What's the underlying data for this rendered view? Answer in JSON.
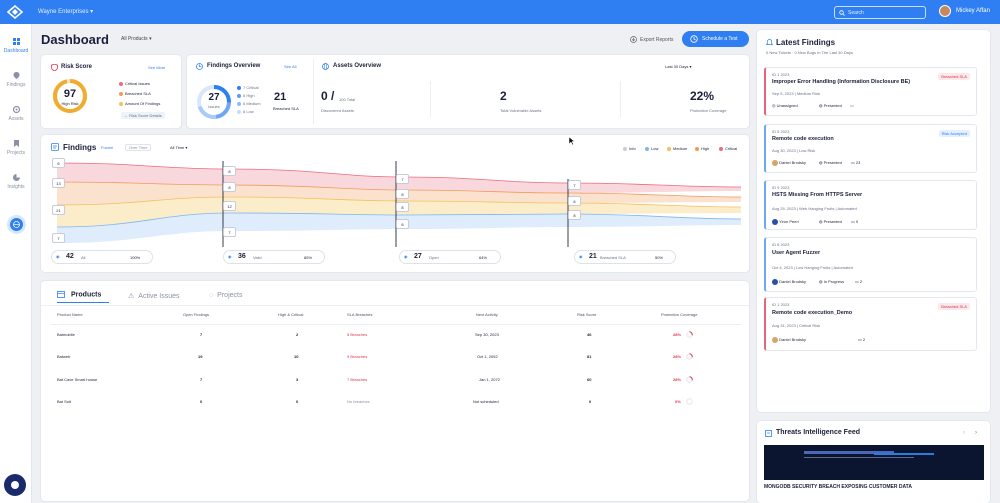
{
  "topbar": {
    "org": "Wayne Enterprises",
    "search_placeholder": "Search",
    "user": "Mickey Affan"
  },
  "nav": [
    {
      "label": "Dashboard"
    },
    {
      "label": "Findings"
    },
    {
      "label": "Assets"
    },
    {
      "label": "Projects"
    },
    {
      "label": "Insights"
    }
  ],
  "header": {
    "title": "Dashboard",
    "product_filter": "All Products",
    "export": "Export Reports",
    "schedule": "Schedule a Test"
  },
  "risk": {
    "title": "Risk Score",
    "see_more": "See More",
    "score": "97",
    "level": "High Risk",
    "legend": [
      "Critical Issues",
      "Breached SLA",
      "Amount Of Findings"
    ],
    "note": "← Risk Score Details"
  },
  "overview": {
    "title": "Findings Overview",
    "see_all": "See All",
    "total": "27",
    "total_label": "Issues",
    "breakdown": [
      "7 Critical",
      "6 High",
      "6 Medium",
      "6 Low"
    ],
    "breached": "21",
    "breached_label": "Breached SLA"
  },
  "assets": {
    "title": "Assets Overview",
    "period": "Last 30 Days",
    "s1_value": "0 /",
    "s1_sub": "100 Total",
    "s1_label": "Discovered Assets",
    "s2_value": "2",
    "s2_label": "Total Vulnerable Assets",
    "s3_value": "22%",
    "s3_label": "Protection Coverage"
  },
  "funnel": {
    "title": "Findings",
    "tabs": [
      "Funnel",
      "Over Time"
    ],
    "filter": "All Time",
    "legend": [
      {
        "label": "Info",
        "color": "#c9ccd6"
      },
      {
        "label": "Low",
        "color": "#7fb6ee"
      },
      {
        "label": "Medium",
        "color": "#f1c15e"
      },
      {
        "label": "High",
        "color": "#f29a5a"
      },
      {
        "label": "Critical",
        "color": "#ec6a7e"
      }
    ],
    "chips": [
      [
        "6",
        "13",
        "21",
        "7"
      ],
      [
        "8",
        "8",
        "12",
        "7"
      ],
      [
        "7",
        "8",
        "8",
        "6"
      ],
      [
        "7",
        "6",
        "8"
      ]
    ],
    "stages": [
      {
        "value": "42",
        "label": "All",
        "pct": "100%"
      },
      {
        "value": "36",
        "label": "Valid",
        "pct": "85%"
      },
      {
        "value": "27",
        "label": "Open",
        "pct": "64%"
      },
      {
        "value": "21",
        "label": "Breached SLA",
        "pct": "50%"
      }
    ]
  },
  "products": {
    "tabs": [
      "Products",
      "Active Issues",
      "Projects"
    ],
    "headers": [
      "Product Name",
      "Open Findings",
      "High & Critical",
      "SLA Breaches",
      "Next Activity",
      "Risk Score",
      "Protection Coverage"
    ],
    "rows": [
      [
        "Batmobile",
        "7",
        "2",
        "5 Breaches",
        "Sep 30, 2023",
        "46",
        "28%"
      ],
      [
        "Batweb",
        "19",
        "10",
        "9 Breaches",
        "Oct 1, 2052",
        "81",
        "28%"
      ],
      [
        "Bat Cave Smart house",
        "7",
        "3",
        "7 Breaches",
        "Jan 1, 2072",
        "60",
        "28%"
      ],
      [
        "Bat Suit",
        "0",
        "0",
        "No breaches",
        "Not scheduled",
        "0",
        "0%"
      ]
    ]
  },
  "latest": {
    "title": "Latest Findings",
    "sub": "0 New Tickets · 0 New Bugs In The Last 30 Days",
    "cards": [
      {
        "id": "ID 1 2023",
        "badge": "Breached SLA",
        "title": "Improper Error Handling (Information Disclosure BE)",
        "meta": "Sep 5, 2023 | Medium Risk",
        "user": "Unassigned",
        "status": "Presented",
        "comments": ""
      },
      {
        "id": "ID 5 2023",
        "badge": "Risk Accepted",
        "title": "Remote code execution",
        "meta": "Aug 30, 2023 | Low Risk",
        "user": "Daniel Brodsky",
        "status": "Presented",
        "comments": "23"
      },
      {
        "id": "ID 9 2023",
        "badge": "",
        "title": "HSTS Missing From HTTPS Server",
        "meta": "Aug 25, 2023 | Web Hanging Fruits | Automated",
        "user": "Yiron Peeri",
        "status": "Presented",
        "comments": "0"
      },
      {
        "id": "ID 8 2023",
        "badge": "",
        "title": "User Agent Fuzzer",
        "meta": "Oct 4, 2023 | Low Hanging Fruits | Automated",
        "user": "Daniel Brodsky",
        "status": "In Progress",
        "comments": "2"
      },
      {
        "id": "ID 1 2023",
        "badge": "Breached SLA",
        "title": "Remote code execution_Demo",
        "meta": "Aug 31, 2023 | Critical Risk",
        "user": "Daniel Brodsky",
        "status": "Presented",
        "comments": "2"
      }
    ]
  },
  "threats": {
    "title": "Threats Intelligence Feed",
    "headline": "MONGODB SECURITY BREACH EXPOSING CUSTOMER DATA"
  }
}
